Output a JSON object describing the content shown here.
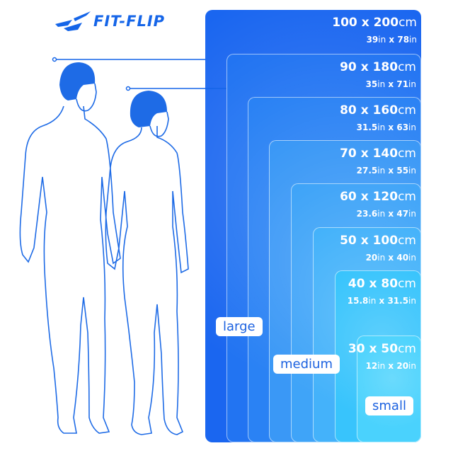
{
  "brand": {
    "name": "FIT-FLIP",
    "color": "#1565e8"
  },
  "sizes": [
    {
      "cm_w": "100",
      "cm_h": "200",
      "in_w": "39",
      "in_h": "78",
      "color": "#1a66f0"
    },
    {
      "cm_w": "90",
      "cm_h": "180",
      "in_w": "35",
      "in_h": "71",
      "color": "#2274f2"
    },
    {
      "cm_w": "80",
      "cm_h": "160",
      "in_w": "31.5",
      "in_h": "63",
      "color": "#2a82f4"
    },
    {
      "cm_w": "70",
      "cm_h": "140",
      "in_w": "27.5",
      "in_h": "55",
      "color": "#3a98f6"
    },
    {
      "cm_w": "60",
      "cm_h": "120",
      "in_w": "23.6",
      "in_h": "47",
      "color": "#3fa4f8"
    },
    {
      "cm_w": "50",
      "cm_h": "100",
      "in_w": "20",
      "in_h": "40",
      "color": "#44b2fa"
    },
    {
      "cm_w": "40",
      "cm_h": "80",
      "in_w": "15.8",
      "in_h": "31.5",
      "color": "#38c4fc"
    },
    {
      "cm_w": "30",
      "cm_h": "50",
      "in_w": "12",
      "in_h": "20",
      "color": "#4ad2fd"
    }
  ],
  "units": {
    "cm": "cm",
    "in": "in",
    "x": "x"
  },
  "categories": {
    "large": "large",
    "medium": "medium",
    "small": "small"
  }
}
